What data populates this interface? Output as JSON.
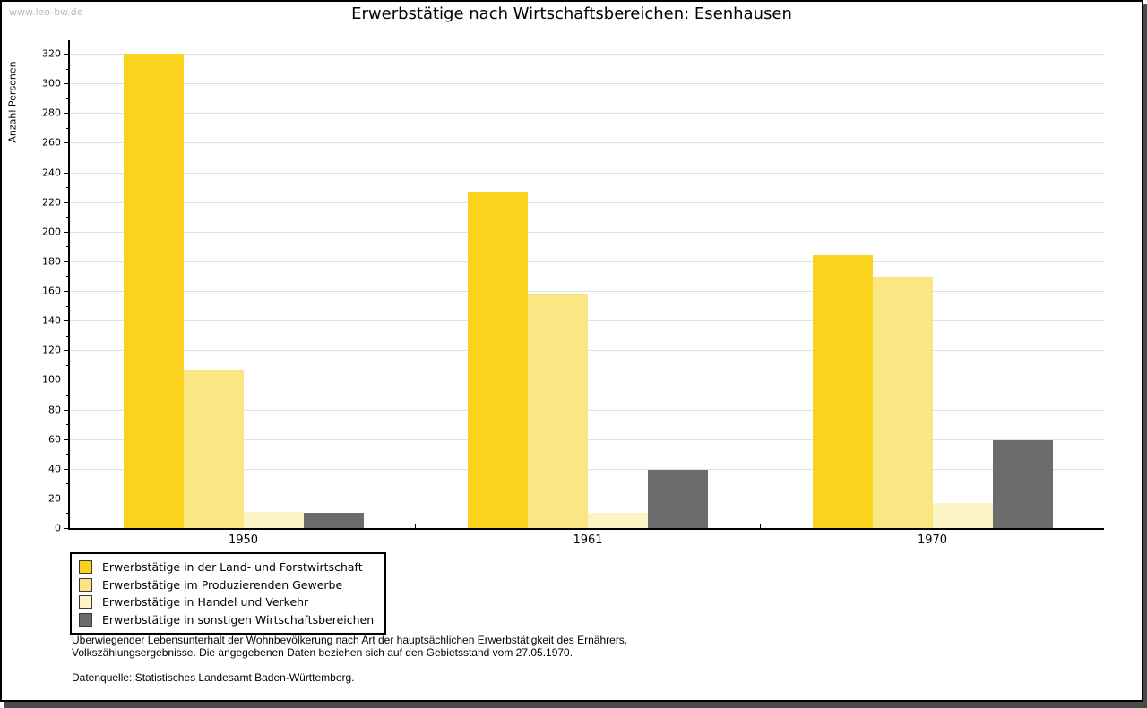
{
  "watermark": "www.leo-bw.de",
  "header": {
    "title": "Erwerbstätige nach Wirtschaftsbereichen: Esenhausen"
  },
  "chart_data": {
    "type": "bar",
    "title": "Erwerbstätige nach Wirtschaftsbereichen: Esenhausen",
    "xlabel": "",
    "ylabel": "Anzahl Personen",
    "ylim": [
      0,
      320
    ],
    "ytick_step": 20,
    "yticks": [
      0,
      20,
      40,
      60,
      80,
      100,
      120,
      140,
      160,
      180,
      200,
      220,
      240,
      260,
      280,
      300,
      320
    ],
    "grid": true,
    "legend_position": "bottom-left",
    "categories": [
      "1950",
      "1961",
      "1970"
    ],
    "series": [
      {
        "name": "Erwerbstätige in der Land- und Forstwirtschaft",
        "color": "#fbd21d",
        "values": [
          320,
          227,
          184
        ]
      },
      {
        "name": "Erwerbstätige im Produzierenden Gewerbe",
        "color": "#fbe684",
        "values": [
          107,
          158,
          169
        ]
      },
      {
        "name": "Erwerbstätige in Handel und Verkehr",
        "color": "#fcf3c6",
        "values": [
          11,
          10,
          17
        ]
      },
      {
        "name": "Erwerbstätige in sonstigen Wirtschaftsbereichen",
        "color": "#6c6c6c",
        "values": [
          10,
          39,
          59
        ]
      }
    ]
  },
  "footer": {
    "line1": "Überwiegender Lebensunterhalt der Wohnbevölkerung nach Art der hauptsächlichen Erwerbstätigkeit des Ernährers.",
    "line2": "Volkszählungsergebnisse. Die angegebenen Daten beziehen sich auf den Gebietsstand vom 27.05.1970.",
    "source": "Datenquelle: Statistisches Landesamt Baden-Württemberg."
  }
}
